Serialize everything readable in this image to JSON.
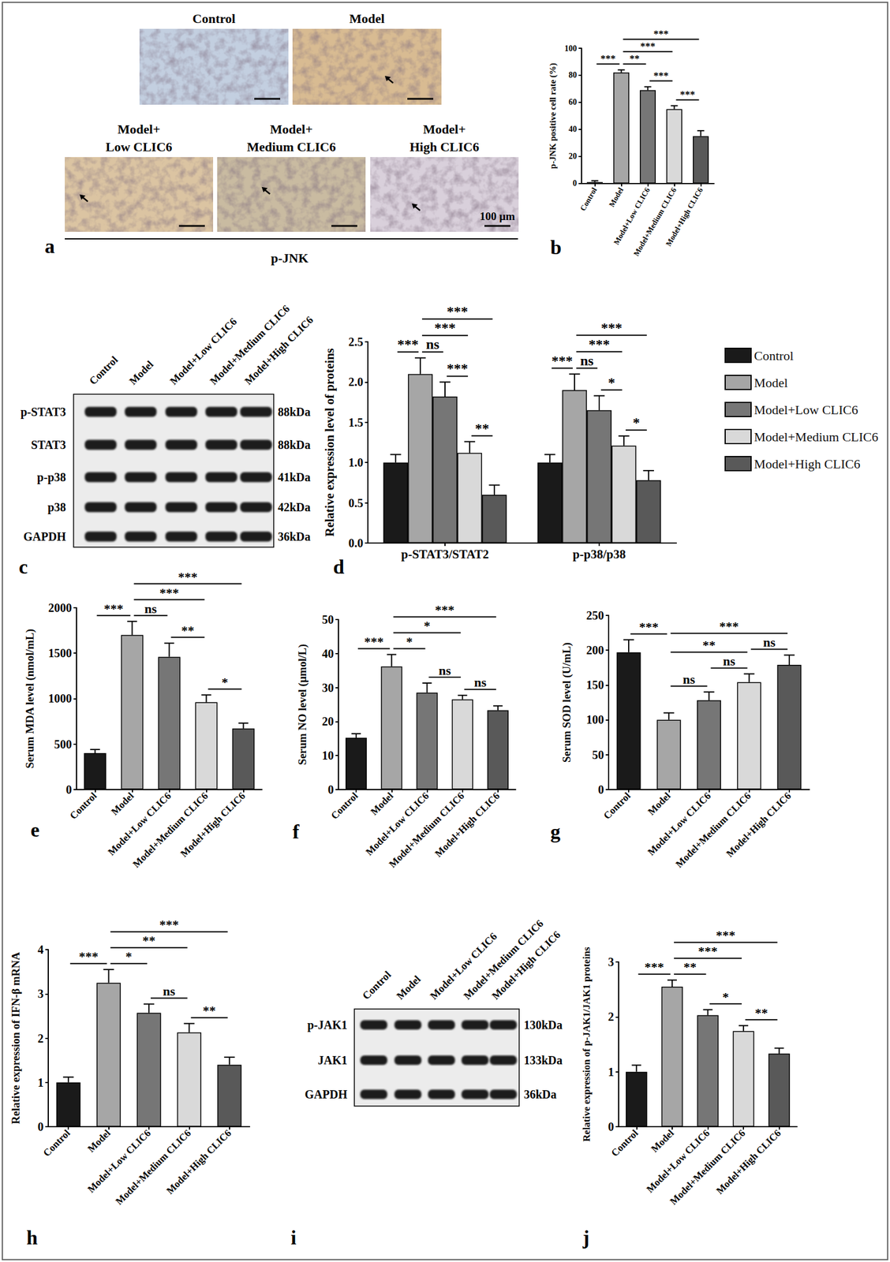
{
  "micrographs": {
    "panel": "a",
    "caption": "p-JNK",
    "scale_bar": "100 μm",
    "images": [
      {
        "label": [
          "Control"
        ]
      },
      {
        "label": [
          "Model"
        ]
      },
      {
        "label": [
          "Model+",
          "Low CLIC6"
        ]
      },
      {
        "label": [
          "Model+",
          "Medium CLIC6"
        ]
      },
      {
        "label": [
          "Model+",
          "High CLIC6"
        ]
      }
    ]
  },
  "blots": [
    {
      "panel": "c",
      "columns": [
        "Control",
        "Model",
        "Model+Low CLIC6",
        "Model+Medium CLIC6",
        "Model+High CLIC6"
      ],
      "rows": [
        {
          "label": "p-STAT3",
          "size": "88kDa"
        },
        {
          "label": "STAT3",
          "size": "88kDa"
        },
        {
          "label": "p-p38",
          "size": "41kDa"
        },
        {
          "label": "p38",
          "size": "42kDa"
        },
        {
          "label": "GAPDH",
          "size": "36kDa"
        }
      ]
    },
    {
      "panel": "i",
      "columns": [
        "Control",
        "Model",
        "Model+Low CLIC6",
        "Model+Medium CLIC6",
        "Model+High CLIC6"
      ],
      "rows": [
        {
          "label": "p-JAK1",
          "size": "130kDa"
        },
        {
          "label": "JAK1",
          "size": "133kDa"
        },
        {
          "label": "GAPDH",
          "size": "36kDa"
        }
      ]
    }
  ],
  "chart_data": [
    {
      "panel": "b",
      "type": "bar",
      "ylabel": "p-JNK positive cell rate (%)",
      "categories": [
        "Control",
        "Model",
        "Model+Low CLIC6",
        "Model+Medium CLIC6",
        "Model+High CLIC6"
      ],
      "values": [
        1,
        82,
        69,
        55,
        35
      ],
      "errors": [
        1,
        2,
        2.5,
        2.5,
        4
      ],
      "colors": [
        "#1a1a1a",
        "#a6a6a6",
        "#767676",
        "#d9d9d9",
        "#595959"
      ],
      "ylim": [
        0,
        100
      ],
      "yticks": [
        0,
        20,
        40,
        60,
        80,
        100
      ],
      "grid": false,
      "annotations": [
        {
          "from": "Control",
          "to": "Model",
          "label": "***"
        },
        {
          "from": "Model",
          "to": "Model+Low CLIC6",
          "label": "**"
        },
        {
          "from": "Model+Low CLIC6",
          "to": "Model+Medium CLIC6",
          "label": "***"
        },
        {
          "from": "Model+Medium CLIC6",
          "to": "Model+High CLIC6",
          "label": "***"
        },
        {
          "from": "Model",
          "to": "Model+Medium CLIC6",
          "label": "***"
        },
        {
          "from": "Model",
          "to": "Model+High CLIC6",
          "label": "***"
        }
      ]
    },
    {
      "panel": "d",
      "type": "bar",
      "ylabel": "Relative expression level of proteins",
      "categories": [
        "p-STAT3/STAT2",
        "p-p38/p38"
      ],
      "series": [
        {
          "name": "Control",
          "color": "#1a1a1a",
          "values": [
            1.0,
            1.0
          ],
          "errors": [
            0.1,
            0.1
          ]
        },
        {
          "name": "Model",
          "color": "#a6a6a6",
          "values": [
            2.1,
            1.9
          ],
          "errors": [
            0.2,
            0.2
          ]
        },
        {
          "name": "Model+Low CLIC6",
          "color": "#767676",
          "values": [
            1.82,
            1.65
          ],
          "errors": [
            0.18,
            0.18
          ]
        },
        {
          "name": "Model+Medium CLIC6",
          "color": "#d9d9d9",
          "values": [
            1.12,
            1.21
          ],
          "errors": [
            0.14,
            0.12
          ]
        },
        {
          "name": "Model+High CLIC6",
          "color": "#595959",
          "values": [
            0.6,
            0.78
          ],
          "errors": [
            0.12,
            0.12
          ]
        }
      ],
      "ylim": [
        0,
        2.5
      ],
      "yticks": [
        {
          "value": 0,
          "label": "0.0"
        },
        0.5,
        {
          "value": 1,
          "label": "1.0"
        },
        1.5,
        {
          "value": 2,
          "label": "2.0"
        },
        2.5
      ],
      "grid": false,
      "legend": "right",
      "annotations": [
        {
          "category": "p-STAT3/STAT2",
          "from": "Control",
          "to": "Model",
          "label": "***"
        },
        {
          "category": "p-STAT3/STAT2",
          "from": "Model",
          "to": "Model+Low CLIC6",
          "label": "ns"
        },
        {
          "category": "p-STAT3/STAT2",
          "from": "Model+Low CLIC6",
          "to": "Model+Medium CLIC6",
          "label": "***"
        },
        {
          "category": "p-STAT3/STAT2",
          "from": "Model+Medium CLIC6",
          "to": "Model+High CLIC6",
          "label": "**"
        },
        {
          "category": "p-STAT3/STAT2",
          "from": "Model",
          "to": "Model+Medium CLIC6",
          "label": "***"
        },
        {
          "category": "p-STAT3/STAT2",
          "from": "Model",
          "to": "Model+High CLIC6",
          "label": "***"
        },
        {
          "category": "p-p38/p38",
          "from": "Control",
          "to": "Model",
          "label": "***"
        },
        {
          "category": "p-p38/p38",
          "from": "Model",
          "to": "Model+Low CLIC6",
          "label": "ns"
        },
        {
          "category": "p-p38/p38",
          "from": "Model+Low CLIC6",
          "to": "Model+Medium CLIC6",
          "label": "*"
        },
        {
          "category": "p-p38/p38",
          "from": "Model+Medium CLIC6",
          "to": "Model+High CLIC6",
          "label": "*"
        },
        {
          "category": "p-p38/p38",
          "from": "Model",
          "to": "Model+Medium CLIC6",
          "label": "***"
        },
        {
          "category": "p-p38/p38",
          "from": "Model",
          "to": "Model+High CLIC6",
          "label": "***"
        }
      ]
    },
    {
      "panel": "e",
      "type": "bar",
      "ylabel": "Serum MDA level (nmol/mL)",
      "categories": [
        "Control",
        "Model",
        "Model+Low CLIC6",
        "Model+Medium CLIC6",
        "Model+High CLIC6"
      ],
      "values": [
        400,
        1700,
        1460,
        960,
        670
      ],
      "errors": [
        40,
        150,
        150,
        80,
        60
      ],
      "colors": [
        "#1a1a1a",
        "#a6a6a6",
        "#767676",
        "#d9d9d9",
        "#595959"
      ],
      "ylim": [
        0,
        2000
      ],
      "yticks": [
        0,
        500,
        1000,
        1500,
        2000
      ],
      "grid": false,
      "annotations": [
        {
          "from": "Control",
          "to": "Model",
          "label": "***"
        },
        {
          "from": "Model",
          "to": "Model+Low CLIC6",
          "label": "ns"
        },
        {
          "from": "Model+Low CLIC6",
          "to": "Model+Medium CLIC6",
          "label": "**"
        },
        {
          "from": "Model+Medium CLIC6",
          "to": "Model+High CLIC6",
          "label": "*"
        },
        {
          "from": "Model",
          "to": "Model+Medium CLIC6",
          "label": "***"
        },
        {
          "from": "Model",
          "to": "Model+High CLIC6",
          "label": "***"
        }
      ]
    },
    {
      "panel": "f",
      "type": "bar",
      "ylabel": "Serum NO level (μmol/L)",
      "categories": [
        "Control",
        "Model",
        "Model+Low CLIC6",
        "Model+Medium CLIC6",
        "Model+High CLIC6"
      ],
      "values": [
        15.2,
        36.2,
        28.5,
        26.5,
        23.3
      ],
      "errors": [
        1.2,
        3.5,
        2.8,
        1.2,
        1.3
      ],
      "colors": [
        "#1a1a1a",
        "#a6a6a6",
        "#767676",
        "#d9d9d9",
        "#595959"
      ],
      "ylim": [
        0,
        50
      ],
      "yticks": [
        0,
        10,
        20,
        30,
        40,
        50
      ],
      "grid": false,
      "annotations": [
        {
          "from": "Control",
          "to": "Model",
          "label": "***"
        },
        {
          "from": "Model",
          "to": "Model+Low CLIC6",
          "label": "*"
        },
        {
          "from": "Model+Low CLIC6",
          "to": "Model+Medium CLIC6",
          "label": "ns"
        },
        {
          "from": "Model+Medium CLIC6",
          "to": "Model+High CLIC6",
          "label": "ns"
        },
        {
          "from": "Model",
          "to": "Model+Medium CLIC6",
          "label": "*"
        },
        {
          "from": "Model",
          "to": "Model+High CLIC6",
          "label": "***"
        }
      ]
    },
    {
      "panel": "g",
      "type": "bar",
      "ylabel": "Serum SOD level (U/mL)",
      "categories": [
        "Control",
        "Model",
        "Model+Low CLIC6",
        "Model+Medium CLIC6",
        "Model+High CLIC6"
      ],
      "values": [
        197,
        100,
        128,
        154,
        179
      ],
      "errors": [
        18,
        10,
        12,
        12,
        14
      ],
      "colors": [
        "#1a1a1a",
        "#a6a6a6",
        "#767676",
        "#d9d9d9",
        "#595959"
      ],
      "ylim": [
        0,
        250
      ],
      "yticks": [
        0,
        50,
        100,
        150,
        200,
        250
      ],
      "grid": false,
      "annotations": [
        {
          "from": "Control",
          "to": "Model",
          "label": "***"
        },
        {
          "from": "Model",
          "to": "Model+Low CLIC6",
          "label": "ns"
        },
        {
          "from": "Model+Low CLIC6",
          "to": "Model+Medium CLIC6",
          "label": "ns"
        },
        {
          "from": "Model+Medium CLIC6",
          "to": "Model+High CLIC6",
          "label": "ns"
        },
        {
          "from": "Model",
          "to": "Model+Medium CLIC6",
          "label": "**"
        },
        {
          "from": "Model",
          "to": "Model+High CLIC6",
          "label": "***"
        }
      ]
    },
    {
      "panel": "h",
      "type": "bar",
      "ylabel": "Relative expression of IFN-β mRNA",
      "categories": [
        "Control",
        "Model",
        "Model+Low CLIC6",
        "Model+Medium CLIC6",
        "Model+High CLIC6"
      ],
      "values": [
        1.0,
        3.25,
        2.57,
        2.13,
        1.4
      ],
      "errors": [
        0.12,
        0.3,
        0.2,
        0.2,
        0.17
      ],
      "colors": [
        "#1a1a1a",
        "#a6a6a6",
        "#767676",
        "#d9d9d9",
        "#595959"
      ],
      "ylim": [
        0,
        4
      ],
      "yticks": [
        0,
        1,
        2,
        3,
        4
      ],
      "grid": false,
      "annotations": [
        {
          "from": "Control",
          "to": "Model",
          "label": "***"
        },
        {
          "from": "Model",
          "to": "Model+Low CLIC6",
          "label": "*"
        },
        {
          "from": "Model+Low CLIC6",
          "to": "Model+Medium CLIC6",
          "label": "ns"
        },
        {
          "from": "Model+Medium CLIC6",
          "to": "Model+High CLIC6",
          "label": "**"
        },
        {
          "from": "Model",
          "to": "Model+Medium CLIC6",
          "label": "**"
        },
        {
          "from": "Model",
          "to": "Model+High CLIC6",
          "label": "***"
        }
      ]
    },
    {
      "panel": "j",
      "type": "bar",
      "ylabel": "Relative expression of p-JAK1/JAK1 proteins",
      "categories": [
        "Control",
        "Model",
        "Model+Low CLIC6",
        "Model+Medium CLIC6",
        "Model+High CLIC6"
      ],
      "values": [
        1.0,
        2.55,
        2.03,
        1.74,
        1.33
      ],
      "errors": [
        0.12,
        0.12,
        0.1,
        0.1,
        0.1
      ],
      "colors": [
        "#1a1a1a",
        "#a6a6a6",
        "#767676",
        "#d9d9d9",
        "#595959"
      ],
      "ylim": [
        0,
        3
      ],
      "yticks": [
        0,
        1,
        2,
        3
      ],
      "grid": false,
      "annotations": [
        {
          "from": "Control",
          "to": "Model",
          "label": "***"
        },
        {
          "from": "Model",
          "to": "Model+Low CLIC6",
          "label": "**"
        },
        {
          "from": "Model+Low CLIC6",
          "to": "Model+Medium CLIC6",
          "label": "*"
        },
        {
          "from": "Model+Medium CLIC6",
          "to": "Model+High CLIC6",
          "label": "**"
        },
        {
          "from": "Model",
          "to": "Model+Medium CLIC6",
          "label": "***"
        },
        {
          "from": "Model",
          "to": "Model+High CLIC6",
          "label": "***"
        }
      ]
    }
  ]
}
